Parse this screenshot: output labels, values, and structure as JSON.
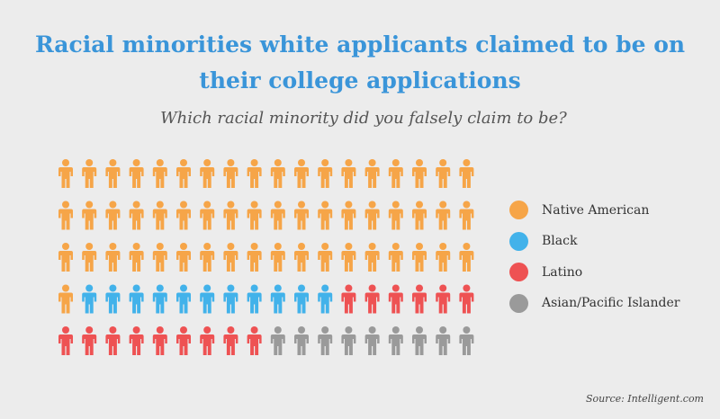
{
  "chart_data": {
    "type": "pictogram",
    "title_lines": [
      "Racial minorities white applicants claimed to be on",
      "their college applications"
    ],
    "subtitle": "Which racial minority did you falsely claim to be?",
    "rows": 5,
    "columns": 18,
    "categories": [
      "Native American",
      "Black",
      "Latino",
      "Asian/Pacific Islander"
    ],
    "values": [
      55,
      11,
      15,
      9
    ],
    "colors": [
      "#f6a548",
      "#42b2ea",
      "#ee5253",
      "#9a9a9a"
    ],
    "source": "Source: Intelligent.com"
  }
}
